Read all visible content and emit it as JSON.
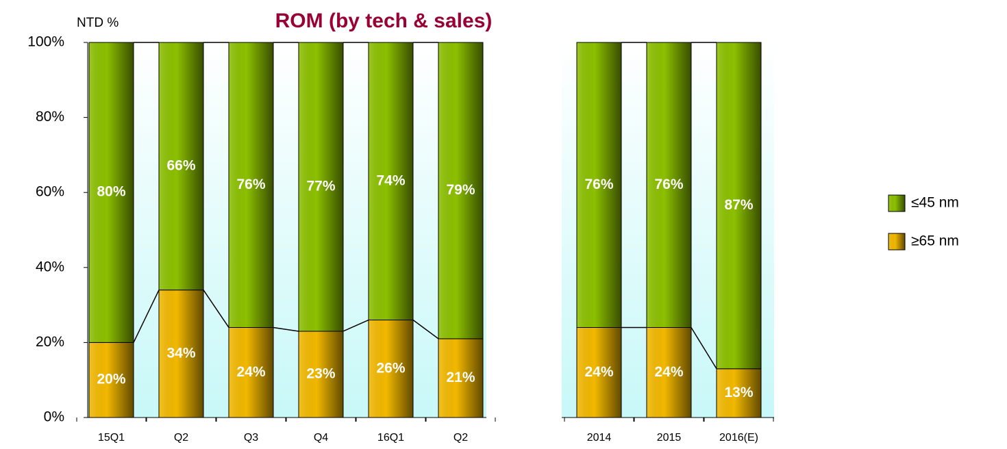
{
  "chart_data": {
    "type": "stacked_bar",
    "title": "ROM (by tech & sales)",
    "y_label": "NTD %",
    "categories": [
      "15Q1",
      "Q2",
      "Q3",
      "Q4",
      "16Q1",
      "Q2",
      "2014",
      "2015",
      "2016(E)"
    ],
    "series": [
      {
        "name": "≥65 nm",
        "color": "#f2b800",
        "values": [
          20,
          34,
          24,
          23,
          26,
          21,
          24,
          24,
          13
        ],
        "value_labels": [
          "20%",
          "34%",
          "24%",
          "23%",
          "26%",
          "21%",
          "24%",
          "24%",
          "13%"
        ]
      },
      {
        "name": "≤45 nm",
        "color": "#8cc000",
        "values": [
          80,
          66,
          76,
          77,
          74,
          79,
          76,
          76,
          87
        ],
        "value_labels": [
          "80%",
          "66%",
          "76%",
          "77%",
          "74%",
          "79%",
          "76%",
          "76%",
          "87%"
        ]
      }
    ],
    "ylim": [
      0,
      100
    ],
    "yticks": [
      {
        "value": 0,
        "label": "0%"
      },
      {
        "value": 20,
        "label": "20%"
      },
      {
        "value": 40,
        "label": "40%"
      },
      {
        "value": 60,
        "label": "60%"
      },
      {
        "value": 80,
        "label": "80%"
      },
      {
        "value": 100,
        "label": "100%"
      }
    ],
    "legend": "right"
  }
}
